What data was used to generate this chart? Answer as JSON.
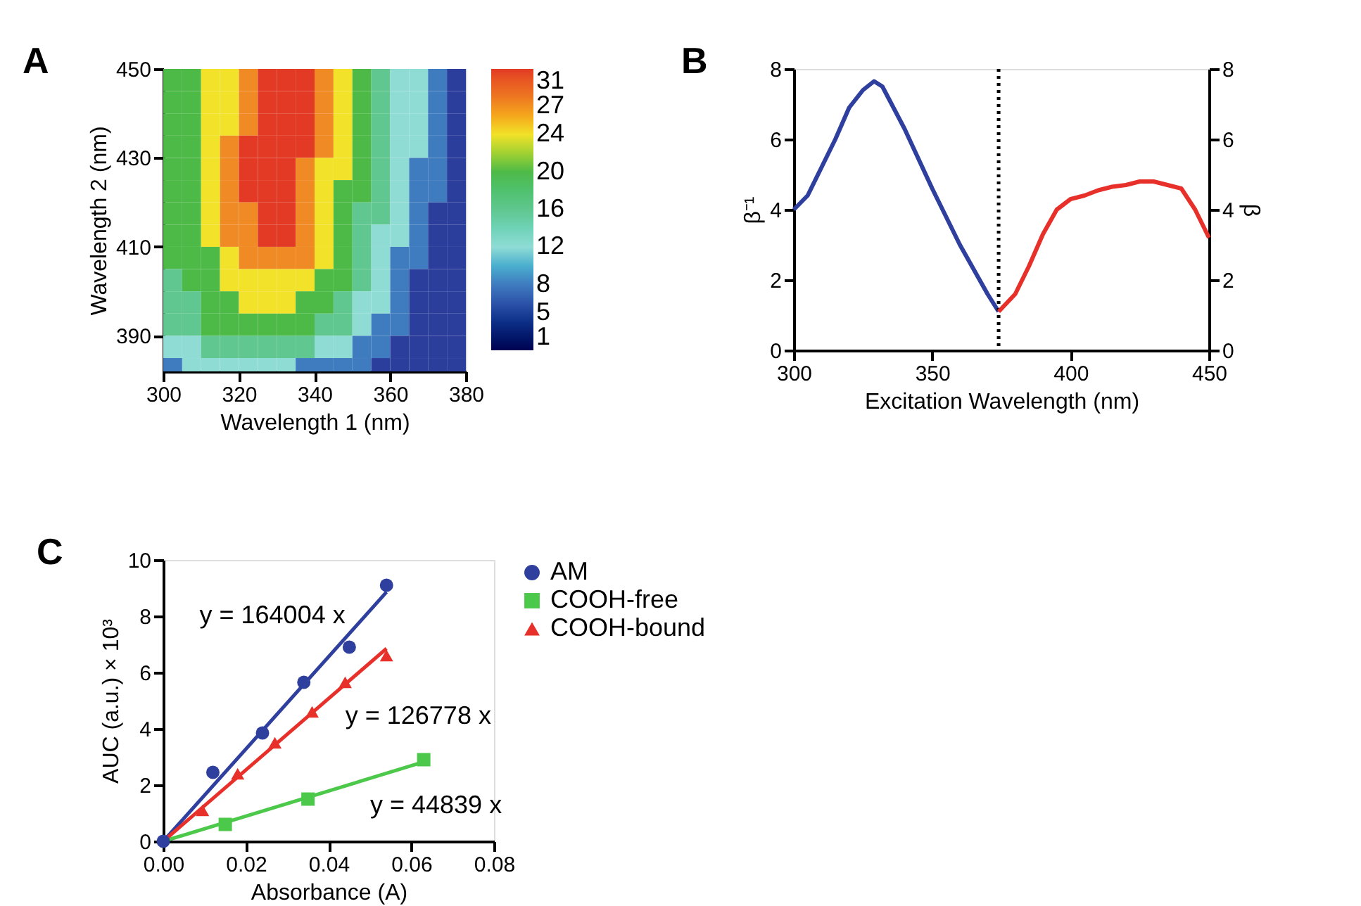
{
  "chart_data": [
    {
      "type": "heatmap",
      "annotations": [
        "A"
      ],
      "xlabel": "Wavelength 1 (nm)",
      "ylabel": "Wavelength 2 (nm)",
      "x": [
        302.5,
        307.5,
        312.5,
        317.5,
        322.5,
        327.5,
        332.5,
        337.5,
        342.5,
        347.5,
        352.5,
        357.5,
        362.5,
        367.5,
        372.5,
        377.5
      ],
      "y": [
        447.5,
        442.5,
        437.5,
        432.5,
        427.5,
        422.5,
        417.5,
        412.5,
        407.5,
        402.5,
        397.5,
        392.5,
        387.5,
        382.5
      ],
      "cells": [
        [
          20,
          20,
          24,
          24,
          27,
          31,
          31,
          31,
          27,
          24,
          20,
          16,
          12,
          12,
          8,
          5
        ],
        [
          20,
          20,
          24,
          24,
          27,
          31,
          31,
          31,
          27,
          24,
          20,
          16,
          12,
          12,
          8,
          5
        ],
        [
          20,
          20,
          24,
          24,
          27,
          31,
          31,
          31,
          27,
          24,
          20,
          16,
          12,
          12,
          8,
          5
        ],
        [
          20,
          20,
          24,
          27,
          31,
          31,
          31,
          31,
          27,
          24,
          20,
          16,
          12,
          12,
          8,
          5
        ],
        [
          20,
          20,
          24,
          27,
          31,
          31,
          31,
          27,
          24,
          24,
          20,
          16,
          12,
          8,
          8,
          5
        ],
        [
          20,
          20,
          24,
          27,
          31,
          31,
          31,
          27,
          24,
          20,
          20,
          16,
          12,
          8,
          8,
          5
        ],
        [
          20,
          20,
          24,
          27,
          27,
          31,
          31,
          27,
          24,
          20,
          16,
          16,
          12,
          8,
          5,
          5
        ],
        [
          20,
          20,
          24,
          27,
          27,
          31,
          31,
          27,
          24,
          20,
          16,
          12,
          12,
          8,
          5,
          5
        ],
        [
          20,
          20,
          20,
          24,
          27,
          27,
          27,
          27,
          24,
          20,
          16,
          12,
          8,
          8,
          5,
          5
        ],
        [
          16,
          20,
          20,
          24,
          24,
          24,
          24,
          24,
          20,
          20,
          16,
          12,
          8,
          5,
          5,
          5
        ],
        [
          16,
          16,
          20,
          20,
          24,
          24,
          24,
          20,
          20,
          16,
          12,
          12,
          8,
          5,
          5,
          5
        ],
        [
          16,
          16,
          20,
          20,
          20,
          20,
          20,
          20,
          16,
          16,
          12,
          8,
          8,
          5,
          5,
          5
        ],
        [
          12,
          12,
          16,
          16,
          16,
          16,
          16,
          16,
          12,
          12,
          8,
          8,
          5,
          5,
          5,
          5
        ],
        [
          8,
          12,
          12,
          12,
          12,
          12,
          12,
          8,
          8,
          8,
          8,
          5,
          5,
          5,
          5,
          5
        ]
      ],
      "xlim": [
        300,
        380
      ],
      "xticks": [
        300,
        320,
        340,
        360,
        380
      ],
      "ylim": [
        382,
        450
      ],
      "yticks": [
        390,
        410,
        430,
        450
      ],
      "clim": [
        1,
        31
      ],
      "cticks": [
        1,
        5,
        8,
        12,
        16,
        20,
        24,
        27,
        31
      ],
      "colors": [
        "#000000",
        "#2b3e9b",
        "#3f7bbf",
        "#8fdcd5",
        "#5fc78f",
        "#4dba48",
        "#f2e229",
        "#f08a24",
        "#e23a25"
      ]
    },
    {
      "type": "line",
      "annotations": [
        "B"
      ],
      "xlabel": "Excitation Wavelength (nm)",
      "ylabel": "β⁻¹",
      "y2label": "β",
      "xlim": [
        300,
        450
      ],
      "xticks": [
        300,
        350,
        400,
        450
      ],
      "ylim": [
        0,
        8
      ],
      "yticks": [
        0,
        2,
        4,
        6,
        8
      ],
      "y2lim": [
        0,
        8
      ],
      "y2ticks": [
        0,
        2,
        4,
        6,
        8
      ],
      "grid": false,
      "marker": "none",
      "series": [
        {
          "color": "#2f3f9e",
          "x": [
            300,
            305,
            310,
            315,
            320,
            325,
            329,
            332,
            340,
            350,
            360,
            370,
            374
          ],
          "values": [
            4.0,
            4.4,
            5.2,
            6.0,
            6.9,
            7.4,
            7.65,
            7.5,
            6.3,
            4.6,
            3.0,
            1.6,
            1.1
          ]
        },
        {
          "color": "#e8302a",
          "axis": "y2",
          "x": [
            374,
            380,
            385,
            390,
            395,
            400,
            405,
            410,
            415,
            420,
            425,
            430,
            435,
            440,
            445,
            450
          ],
          "values": [
            1.1,
            1.6,
            2.4,
            3.3,
            4.0,
            4.3,
            4.4,
            4.55,
            4.65,
            4.7,
            4.8,
            4.8,
            4.7,
            4.6,
            4.0,
            3.2
          ]
        }
      ],
      "ref_lines": [
        {
          "axis": "x",
          "value": 374,
          "color": "#000000",
          "line_style": "dotted"
        }
      ]
    },
    {
      "type": "scatter",
      "annotations": [
        "C",
        {
          "text": "y = 164004 x",
          "x": 0.0488,
          "y": 8.0
        },
        {
          "text": "y = 126778 x",
          "x": 0.042,
          "y": 5.32
        },
        {
          "text": "y = 44839 x",
          "x": 0.048,
          "y": 2.15
        }
      ],
      "xlabel": "Absorbance (A)",
      "ylabel": "AUC (a.u.) × 10³",
      "xlim": [
        0,
        0.08
      ],
      "xticks": [
        {
          "value": 0,
          "label": "0.00"
        },
        {
          "value": 0.02,
          "label": "0.02"
        },
        {
          "value": 0.04,
          "label": "0.04"
        },
        {
          "value": 0.06,
          "label": "0.06"
        },
        {
          "value": 0.08,
          "label": "0.08"
        }
      ],
      "ylim": [
        0,
        10
      ],
      "yticks": [
        0,
        2,
        4,
        6,
        8,
        10
      ],
      "grid": false,
      "legend": "top right",
      "series": [
        {
          "name": "AM",
          "color": "#2f3f9e",
          "marker": "circle",
          "x": [
            0,
            0.012,
            0.024,
            0.034,
            0.045,
            0.054
          ],
          "values": [
            0,
            2.45,
            3.85,
            5.65,
            6.9,
            9.1
          ]
        },
        {
          "name": "COOH-free",
          "color": "#4cc94a",
          "marker": "square",
          "x": [
            0.015,
            0.035,
            0.063
          ],
          "values": [
            0.6,
            1.5,
            2.9
          ]
        },
        {
          "name": "COOH-bound",
          "color": "#e8302a",
          "marker": "triangle",
          "x": [
            0.0095,
            0.018,
            0.027,
            0.036,
            0.044,
            0.054
          ],
          "values": [
            1.1,
            2.4,
            3.5,
            4.6,
            5.65,
            6.6
          ]
        },
        {
          "type": "line",
          "color": "#2f3f9e",
          "marker": "none",
          "x": [
            0,
            0.054
          ],
          "values": [
            0,
            8.86
          ]
        },
        {
          "type": "line",
          "color": "#4cc94a",
          "marker": "none",
          "x": [
            0,
            0.063
          ],
          "values": [
            0,
            2.82
          ]
        },
        {
          "type": "line",
          "color": "#e8302a",
          "marker": "none",
          "x": [
            0,
            0.054
          ],
          "values": [
            0,
            6.85
          ]
        }
      ]
    }
  ]
}
